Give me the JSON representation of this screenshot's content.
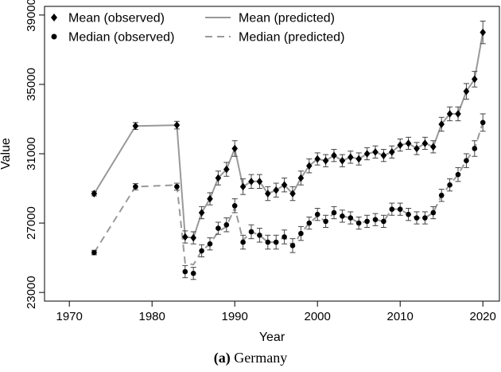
{
  "caption": {
    "label": "(a)",
    "text": " Germany"
  },
  "chart_data": {
    "type": "line",
    "xlabel": "Year",
    "ylabel": "Value",
    "xlim": [
      1967,
      2022
    ],
    "ylim": [
      22500,
      39500
    ],
    "x_ticks": [
      1970,
      1980,
      1990,
      2000,
      2010,
      2020
    ],
    "y_ticks": [
      23000,
      27000,
      31000,
      35000,
      39000
    ],
    "grid": false,
    "legend_placement": "top-left",
    "legend": [
      {
        "label": "Mean (observed)",
        "marker": "diamond"
      },
      {
        "label": "Median (observed)",
        "marker": "circle"
      },
      {
        "label": "Mean (predicted)",
        "line": "solid"
      },
      {
        "label": "Median (predicted)",
        "line": "dashed"
      }
    ],
    "colors": {
      "observed": "#000000",
      "predicted": "#999999",
      "error_bar": "#444444"
    },
    "series": [
      {
        "name": "Mean (observed)",
        "marker": "diamond",
        "points": [
          {
            "x": 1973,
            "y": 28700,
            "err": 130
          },
          {
            "x": 1978,
            "y": 32600,
            "err": 200
          },
          {
            "x": 1983,
            "y": 32650,
            "err": 220
          },
          {
            "x": 1984,
            "y": 26200,
            "err": 350
          },
          {
            "x": 1985,
            "y": 26150,
            "err": 350
          },
          {
            "x": 1986,
            "y": 27600,
            "err": 350
          },
          {
            "x": 1987,
            "y": 28400,
            "err": 350
          },
          {
            "x": 1988,
            "y": 29600,
            "err": 400
          },
          {
            "x": 1989,
            "y": 30100,
            "err": 400
          },
          {
            "x": 1990,
            "y": 31300,
            "err": 450
          },
          {
            "x": 1991,
            "y": 29100,
            "err": 450
          },
          {
            "x": 1992,
            "y": 29400,
            "err": 400
          },
          {
            "x": 1993,
            "y": 29400,
            "err": 400
          },
          {
            "x": 1994,
            "y": 28700,
            "err": 400
          },
          {
            "x": 1995,
            "y": 28900,
            "err": 400
          },
          {
            "x": 1996,
            "y": 29200,
            "err": 400
          },
          {
            "x": 1997,
            "y": 28700,
            "err": 400
          },
          {
            "x": 1998,
            "y": 29600,
            "err": 400
          },
          {
            "x": 1999,
            "y": 30300,
            "err": 400
          },
          {
            "x": 2000,
            "y": 30700,
            "err": 350
          },
          {
            "x": 2001,
            "y": 30600,
            "err": 350
          },
          {
            "x": 2002,
            "y": 30900,
            "err": 350
          },
          {
            "x": 2003,
            "y": 30600,
            "err": 350
          },
          {
            "x": 2004,
            "y": 30800,
            "err": 350
          },
          {
            "x": 2005,
            "y": 30700,
            "err": 350
          },
          {
            "x": 2006,
            "y": 31000,
            "err": 350
          },
          {
            "x": 2007,
            "y": 31100,
            "err": 350
          },
          {
            "x": 2008,
            "y": 30900,
            "err": 350
          },
          {
            "x": 2009,
            "y": 31100,
            "err": 350
          },
          {
            "x": 2010,
            "y": 31500,
            "err": 350
          },
          {
            "x": 2011,
            "y": 31600,
            "err": 350
          },
          {
            "x": 2012,
            "y": 31300,
            "err": 350
          },
          {
            "x": 2013,
            "y": 31600,
            "err": 350
          },
          {
            "x": 2014,
            "y": 31400,
            "err": 350
          },
          {
            "x": 2015,
            "y": 32700,
            "err": 400
          },
          {
            "x": 2016,
            "y": 33300,
            "err": 400
          },
          {
            "x": 2017,
            "y": 33300,
            "err": 400
          },
          {
            "x": 2018,
            "y": 34600,
            "err": 450
          },
          {
            "x": 2019,
            "y": 35300,
            "err": 450
          },
          {
            "x": 2020,
            "y": 38000,
            "err": 650
          }
        ]
      },
      {
        "name": "Median (observed)",
        "marker": "circle",
        "points": [
          {
            "x": 1973,
            "y": 25300,
            "err": 130
          },
          {
            "x": 1978,
            "y": 29100,
            "err": 180
          },
          {
            "x": 1983,
            "y": 29100,
            "err": 200
          },
          {
            "x": 1984,
            "y": 24200,
            "err": 350
          },
          {
            "x": 1985,
            "y": 24100,
            "err": 350
          },
          {
            "x": 1986,
            "y": 25400,
            "err": 350
          },
          {
            "x": 1987,
            "y": 25800,
            "err": 350
          },
          {
            "x": 1988,
            "y": 26700,
            "err": 350
          },
          {
            "x": 1989,
            "y": 26900,
            "err": 400
          },
          {
            "x": 1990,
            "y": 28000,
            "err": 400
          },
          {
            "x": 1991,
            "y": 25900,
            "err": 400
          },
          {
            "x": 1992,
            "y": 26500,
            "err": 400
          },
          {
            "x": 1993,
            "y": 26300,
            "err": 400
          },
          {
            "x": 1994,
            "y": 25900,
            "err": 400
          },
          {
            "x": 1995,
            "y": 25900,
            "err": 400
          },
          {
            "x": 1996,
            "y": 26200,
            "err": 400
          },
          {
            "x": 1997,
            "y": 25700,
            "err": 400
          },
          {
            "x": 1998,
            "y": 26400,
            "err": 400
          },
          {
            "x": 1999,
            "y": 27000,
            "err": 350
          },
          {
            "x": 2000,
            "y": 27500,
            "err": 350
          },
          {
            "x": 2001,
            "y": 27100,
            "err": 350
          },
          {
            "x": 2002,
            "y": 27600,
            "err": 350
          },
          {
            "x": 2003,
            "y": 27400,
            "err": 350
          },
          {
            "x": 2004,
            "y": 27300,
            "err": 350
          },
          {
            "x": 2005,
            "y": 27000,
            "err": 350
          },
          {
            "x": 2006,
            "y": 27100,
            "err": 350
          },
          {
            "x": 2007,
            "y": 27200,
            "err": 350
          },
          {
            "x": 2008,
            "y": 27100,
            "err": 350
          },
          {
            "x": 2009,
            "y": 27800,
            "err": 350
          },
          {
            "x": 2010,
            "y": 27800,
            "err": 350
          },
          {
            "x": 2011,
            "y": 27500,
            "err": 350
          },
          {
            "x": 2012,
            "y": 27300,
            "err": 350
          },
          {
            "x": 2013,
            "y": 27300,
            "err": 350
          },
          {
            "x": 2014,
            "y": 27600,
            "err": 350
          },
          {
            "x": 2015,
            "y": 28600,
            "err": 350
          },
          {
            "x": 2016,
            "y": 29200,
            "err": 350
          },
          {
            "x": 2017,
            "y": 29800,
            "err": 400
          },
          {
            "x": 2018,
            "y": 30600,
            "err": 400
          },
          {
            "x": 2019,
            "y": 31300,
            "err": 450
          },
          {
            "x": 2020,
            "y": 32800,
            "err": 500
          }
        ]
      },
      {
        "name": "Mean (predicted)",
        "line": "solid",
        "x": [
          1973,
          1978,
          1983,
          1984,
          1985,
          1986,
          1987,
          1988,
          1989,
          1990,
          1991,
          1992,
          1993,
          1994,
          1995,
          1996,
          1997,
          1998,
          1999,
          2000,
          2001,
          2002,
          2003,
          2004,
          2005,
          2006,
          2007,
          2008,
          2009,
          2010,
          2011,
          2012,
          2013,
          2014,
          2015,
          2016,
          2017,
          2018,
          2019,
          2020
        ],
        "y": [
          28700,
          32600,
          32650,
          26200,
          26150,
          27600,
          28400,
          29600,
          30100,
          31300,
          29100,
          29400,
          29400,
          28700,
          28900,
          29200,
          28700,
          29600,
          30300,
          30700,
          30600,
          30900,
          30600,
          30800,
          30700,
          31000,
          31100,
          30900,
          31100,
          31500,
          31600,
          31300,
          31600,
          31400,
          32700,
          33300,
          33300,
          34600,
          35300,
          38000
        ]
      },
      {
        "name": "Median (predicted)",
        "line": "dashed",
        "x": [
          1973,
          1978,
          1983,
          1984,
          1985,
          1986,
          1987,
          1988,
          1989,
          1990,
          1991,
          1992,
          1993,
          1994,
          1995,
          1996,
          1997,
          1998,
          1999,
          2000,
          2001,
          2002,
          2003,
          2004,
          2005,
          2006,
          2007,
          2008,
          2009,
          2010,
          2011,
          2012,
          2013,
          2014,
          2015,
          2016,
          2017,
          2018,
          2019,
          2020
        ],
        "y": [
          25300,
          29100,
          29200,
          24700,
          24600,
          25400,
          25800,
          26500,
          26800,
          27900,
          26000,
          26500,
          26300,
          25900,
          25900,
          26200,
          25700,
          26400,
          27000,
          27400,
          27100,
          27600,
          27400,
          27300,
          27000,
          27100,
          27200,
          27100,
          27800,
          27800,
          27500,
          27300,
          27300,
          27600,
          28600,
          29200,
          29800,
          30600,
          31300,
          32800
        ]
      }
    ]
  }
}
